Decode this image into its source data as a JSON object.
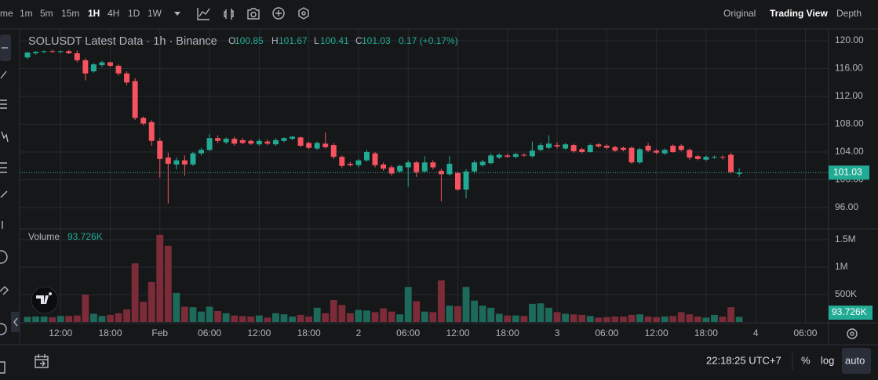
{
  "toolbar": {
    "intervals": [
      "me",
      "1m",
      "5m",
      "15m",
      "1H",
      "4H",
      "1D",
      "1W"
    ],
    "views": [
      "Original",
      "Trading View",
      "Depth"
    ]
  },
  "footer": {
    "clock": "22:18:25 UTC+7",
    "percent": "%",
    "log": "log",
    "auto": "auto"
  },
  "chart_data": {
    "type": "candlestick",
    "title": "SOLUSDT Latest Data · 1h · Binance",
    "legend_labels": [
      "O",
      "H",
      "L",
      "C"
    ],
    "change": "0.17 (+0.17%)",
    "up_color": "#22ab94",
    "down_color": "#f7525f",
    "volume_up_color": "#1d6a5b",
    "volume_down_color": "#7b2c38",
    "grid": true,
    "xlim": [
      -0.95,
      96.8
    ],
    "xticks": [
      {
        "value": 4,
        "label": "12:00"
      },
      {
        "value": 10,
        "label": "18:00"
      },
      {
        "value": 16,
        "label": "Feb"
      },
      {
        "value": 22,
        "label": "06:00"
      },
      {
        "value": 28,
        "label": "12:00"
      },
      {
        "value": 34,
        "label": "18:00"
      },
      {
        "value": 40,
        "label": "2"
      },
      {
        "value": 46,
        "label": "06:00"
      },
      {
        "value": 52,
        "label": "12:00"
      },
      {
        "value": 58,
        "label": "18:00"
      },
      {
        "value": 64,
        "label": "3"
      },
      {
        "value": 70,
        "label": "06:00"
      },
      {
        "value": 76,
        "label": "12:00"
      },
      {
        "value": 82,
        "label": "18:00"
      },
      {
        "value": 88,
        "label": "4"
      },
      {
        "value": 94,
        "label": "06:00"
      }
    ],
    "ylim": [
      93.18,
      121.58
    ],
    "yticks": [
      {
        "value": 96,
        "label": "96.00"
      },
      {
        "value": 100,
        "label": "100.00"
      },
      {
        "value": 104,
        "label": "104.00"
      },
      {
        "value": 108,
        "label": "108.00"
      },
      {
        "value": 112,
        "label": "112.00"
      },
      {
        "value": 116,
        "label": "116.00"
      },
      {
        "value": 120,
        "label": "120.00"
      }
    ],
    "y2lim": [
      0,
      1643000
    ],
    "y2ticks": [
      {
        "value": 500000,
        "label": "500K"
      },
      {
        "value": 1000000,
        "label": "1M"
      },
      {
        "value": 1500000,
        "label": "1.5M"
      }
    ],
    "series": [
      {
        "ohlc": [
          [
            117.6,
            118.4,
            117.4,
            118.3
          ],
          [
            118.2,
            118.5,
            118.0,
            118.4
          ],
          [
            118.4,
            118.6,
            118.2,
            118.5
          ],
          [
            118.5,
            118.7,
            118.3,
            118.4
          ],
          [
            118.4,
            118.6,
            118.2,
            118.5
          ],
          [
            118.5,
            118.7,
            118.1,
            118.2
          ],
          [
            118.2,
            118.6,
            116.9,
            117.2
          ],
          [
            117.2,
            117.5,
            114.3,
            115.3
          ],
          [
            115.6,
            116.8,
            115.4,
            116.6
          ],
          [
            116.5,
            117.1,
            116.2,
            116.9
          ],
          [
            116.9,
            117.0,
            116.2,
            116.4
          ],
          [
            116.4,
            116.6,
            115.0,
            115.3
          ],
          [
            115.3,
            115.6,
            113.6,
            114.0
          ],
          [
            114.2,
            114.6,
            108.6,
            108.9
          ],
          [
            108.9,
            109.1,
            107.8,
            108.1
          ],
          [
            108.3,
            108.6,
            104.9,
            105.6
          ],
          [
            105.6,
            106.0,
            100.3,
            103.0
          ],
          [
            103.2,
            103.9,
            96.6,
            102.3
          ],
          [
            102.2,
            103.2,
            101.5,
            102.8
          ],
          [
            102.8,
            103.5,
            100.6,
            102.2
          ],
          [
            102.2,
            104.0,
            102.0,
            103.8
          ],
          [
            103.8,
            104.6,
            103.5,
            104.3
          ],
          [
            104.3,
            106.6,
            104.1,
            106.0
          ],
          [
            106.0,
            106.4,
            105.3,
            105.6
          ],
          [
            105.4,
            106.1,
            105.1,
            105.9
          ],
          [
            105.9,
            106.2,
            104.9,
            105.2
          ],
          [
            105.7,
            106.0,
            105.1,
            105.3
          ],
          [
            105.6,
            105.8,
            105.0,
            105.2
          ],
          [
            105.1,
            105.9,
            104.9,
            105.6
          ],
          [
            105.5,
            105.8,
            105.0,
            105.2
          ],
          [
            105.1,
            106.0,
            104.9,
            105.7
          ],
          [
            105.6,
            106.1,
            105.4,
            106.0
          ],
          [
            105.9,
            106.3,
            105.7,
            106.2
          ],
          [
            106.1,
            106.2,
            104.7,
            104.9
          ],
          [
            105.3,
            105.5,
            104.4,
            104.6
          ],
          [
            104.5,
            105.5,
            104.3,
            105.3
          ],
          [
            105.2,
            106.8,
            104.5,
            104.7
          ],
          [
            105.0,
            105.3,
            103.0,
            103.3
          ],
          [
            103.3,
            103.5,
            101.7,
            102.0
          ],
          [
            102.3,
            102.6,
            101.9,
            102.1
          ],
          [
            102.1,
            103.0,
            101.8,
            102.8
          ],
          [
            102.8,
            104.3,
            102.6,
            104.0
          ],
          [
            103.8,
            104.0,
            101.8,
            102.1
          ],
          [
            102.2,
            102.5,
            101.3,
            101.6
          ],
          [
            101.8,
            102.1,
            100.6,
            100.9
          ],
          [
            101.2,
            102.2,
            101.0,
            102.0
          ],
          [
            101.8,
            102.8,
            99.0,
            102.5
          ],
          [
            102.5,
            102.7,
            100.4,
            101.1
          ],
          [
            101.2,
            103.4,
            101.0,
            102.5
          ],
          [
            102.5,
            102.8,
            101.5,
            101.8
          ],
          [
            101.3,
            101.6,
            96.9,
            100.8
          ],
          [
            100.8,
            103.4,
            100.6,
            102.3
          ],
          [
            101.0,
            101.2,
            98.4,
            98.6
          ],
          [
            98.6,
            101.5,
            97.3,
            101.2
          ],
          [
            101.2,
            102.8,
            100.9,
            102.5
          ],
          [
            102.1,
            102.9,
            101.9,
            102.6
          ],
          [
            102.4,
            103.8,
            102.2,
            103.5
          ],
          [
            103.2,
            103.8,
            103.0,
            103.6
          ],
          [
            103.5,
            103.8,
            103.2,
            103.3
          ],
          [
            103.3,
            103.9,
            103.1,
            103.7
          ],
          [
            103.6,
            103.8,
            103.3,
            103.5
          ],
          [
            103.4,
            105.5,
            103.2,
            104.2
          ],
          [
            104.3,
            105.3,
            104.1,
            105.0
          ],
          [
            104.6,
            106.4,
            104.4,
            105.2
          ],
          [
            105.0,
            105.4,
            104.5,
            104.8
          ],
          [
            104.5,
            105.3,
            104.3,
            105.1
          ],
          [
            105.0,
            105.2,
            103.9,
            104.1
          ],
          [
            104.4,
            104.6,
            103.8,
            104.0
          ],
          [
            104.0,
            105.2,
            103.9,
            105.0
          ],
          [
            105.1,
            105.3,
            104.6,
            104.8
          ],
          [
            104.9,
            105.1,
            104.4,
            104.6
          ],
          [
            104.7,
            104.9,
            104.0,
            104.2
          ],
          [
            104.6,
            104.8,
            104.1,
            104.3
          ],
          [
            104.6,
            104.8,
            102.3,
            102.5
          ],
          [
            102.5,
            104.6,
            102.3,
            104.4
          ],
          [
            104.9,
            105.3,
            104.0,
            104.2
          ],
          [
            104.2,
            104.4,
            103.7,
            103.9
          ],
          [
            103.8,
            104.5,
            103.6,
            104.3
          ],
          [
            104.9,
            105.1,
            103.9,
            104.0
          ],
          [
            104.9,
            105.1,
            104.1,
            104.3
          ],
          [
            104.3,
            104.5,
            102.9,
            103.2
          ],
          [
            103.4,
            103.6,
            102.8,
            103.0
          ],
          [
            102.9,
            103.5,
            102.7,
            103.3
          ],
          [
            103.2,
            103.5,
            103.0,
            103.3
          ],
          [
            103.3,
            103.5,
            102.9,
            103.2
          ],
          [
            103.6,
            103.9,
            100.9,
            101.1
          ],
          [
            100.85,
            101.67,
            100.41,
            101.03
          ]
        ]
      },
      {
        "name": "Volume",
        "axis": "y2",
        "values": [
          95000,
          100000,
          100000,
          85000,
          110000,
          110000,
          120000,
          500000,
          150000,
          110000,
          130000,
          160000,
          230000,
          1070000,
          370000,
          730000,
          1590000,
          1390000,
          530000,
          280000,
          270000,
          190000,
          280000,
          200000,
          160000,
          120000,
          110000,
          100000,
          120000,
          80000,
          160000,
          140000,
          100000,
          130000,
          100000,
          260000,
          160000,
          400000,
          310000,
          160000,
          220000,
          210000,
          180000,
          250000,
          190000,
          140000,
          640000,
          380000,
          190000,
          180000,
          760000,
          300000,
          290000,
          640000,
          390000,
          300000,
          260000,
          150000,
          120000,
          120000,
          110000,
          330000,
          340000,
          260000,
          180000,
          150000,
          140000,
          130000,
          110000,
          80000,
          90000,
          100000,
          100000,
          130000,
          140000,
          100000,
          90000,
          100000,
          110000,
          180000,
          140000,
          100000,
          80000,
          130000,
          100000,
          270000,
          93726
        ],
        "value_labels": {
          "86": "93.726K"
        }
      }
    ]
  }
}
